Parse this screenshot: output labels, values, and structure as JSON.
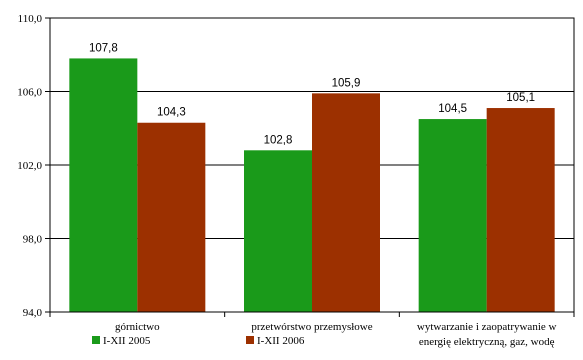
{
  "chart_data": {
    "type": "bar",
    "categories": [
      [
        "górnictwo"
      ],
      [
        "przetwórstwo przemysłowe"
      ],
      [
        "wytwarzanie i zaopatrywanie w",
        "energię elektryczną, gaz, wodę"
      ]
    ],
    "series": [
      {
        "name": "I-XII 2005",
        "color": "#1a9a1a",
        "values": [
          107.8,
          102.8,
          104.5
        ],
        "labels": [
          "107,8",
          "102,8",
          "104,5"
        ]
      },
      {
        "name": "I-XII 2006",
        "color": "#9c3000",
        "values": [
          104.3,
          105.9,
          105.1
        ],
        "labels": [
          "104,3",
          "105,9",
          "105,1"
        ]
      }
    ],
    "ylim": [
      94.0,
      110.0
    ],
    "yticks": [
      94.0,
      98.0,
      102.0,
      106.0,
      110.0
    ],
    "ytick_labels": [
      "94,0",
      "98,0",
      "102,0",
      "106,0",
      "110,0"
    ],
    "grid": true,
    "legend_position": "bottom-left",
    "title": "",
    "xlabel": "",
    "ylabel": ""
  }
}
